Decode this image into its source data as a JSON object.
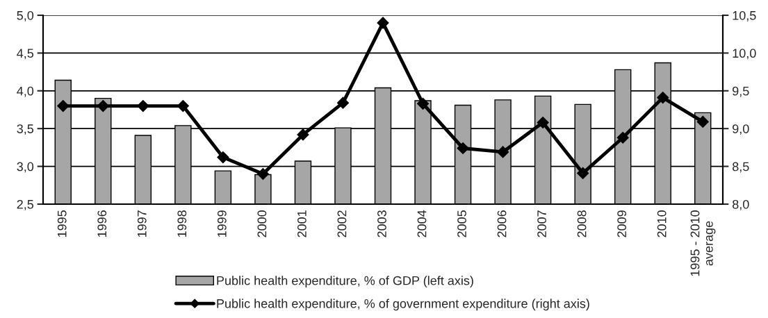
{
  "chart_data": {
    "type": "bar",
    "categories": [
      "1995",
      "1996",
      "1997",
      "1998",
      "1999",
      "2000",
      "2001",
      "2002",
      "2003",
      "2004",
      "2005",
      "2006",
      "2007",
      "2008",
      "2009",
      "2010",
      "1995 - 2010\naverage"
    ],
    "series": [
      {
        "name": "Public health expenditure, % of GDP (left axis)",
        "color": "#a6a6a6",
        "values": [
          4.14,
          3.9,
          3.41,
          3.54,
          2.94,
          2.89,
          3.07,
          3.51,
          4.04,
          3.87,
          3.81,
          3.88,
          3.93,
          3.82,
          4.28,
          4.37,
          3.71
        ]
      },
      {
        "name": "Public health expenditure, % of government expenditure (right axis)",
        "type": "line",
        "axis": "y2",
        "color": "#000000",
        "marker": "diamond",
        "values": [
          9.3,
          9.3,
          9.3,
          9.3,
          8.62,
          8.4,
          8.92,
          9.34,
          10.4,
          9.33,
          8.74,
          8.69,
          9.08,
          8.41,
          8.88,
          9.41,
          9.09
        ]
      }
    ],
    "ylim": [
      2.5,
      5.0
    ],
    "yticks": [
      {
        "value": 2.5,
        "label": "2,5"
      },
      {
        "value": 3.0,
        "label": "3,0"
      },
      {
        "value": 3.5,
        "label": "3,5"
      },
      {
        "value": 4.0,
        "label": "4,0"
      },
      {
        "value": 4.5,
        "label": "4,5"
      },
      {
        "value": 5.0,
        "label": "5,0"
      }
    ],
    "y2lim": [
      8.0,
      10.5
    ],
    "y2ticks": [
      {
        "value": 8.0,
        "label": "8,0"
      },
      {
        "value": 8.5,
        "label": "8,5"
      },
      {
        "value": 9.0,
        "label": "9,0"
      },
      {
        "value": 9.5,
        "label": "9,5"
      },
      {
        "value": 10.0,
        "label": "10,0"
      },
      {
        "value": 10.5,
        "label": "10,5"
      }
    ],
    "grid": "y",
    "legend": "bottom"
  }
}
